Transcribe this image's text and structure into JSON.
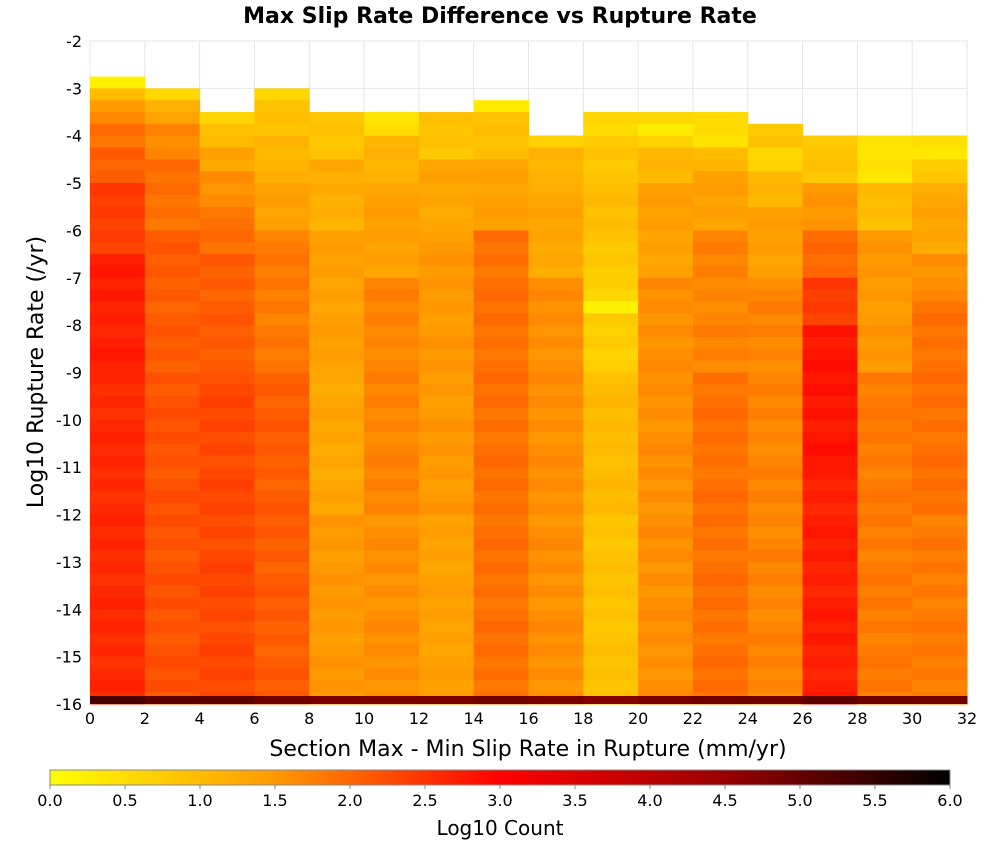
{
  "chart_data": {
    "type": "heatmap",
    "title": "Max Slip Rate Difference vs Rupture Rate",
    "xlabel": "Section Max - Min Slip Rate in Rupture (mm/yr)",
    "ylabel": "Log10 Rupture Rate (/yr)",
    "colorbar_label": "Log10 Count",
    "xlim": [
      0,
      32
    ],
    "ylim": [
      -16,
      -2
    ],
    "x_ticks": [
      "0",
      "2",
      "4",
      "6",
      "8",
      "10",
      "12",
      "14",
      "16",
      "18",
      "20",
      "22",
      "24",
      "26",
      "28",
      "30",
      "32"
    ],
    "y_ticks": [
      "-2",
      "-3",
      "-4",
      "-5",
      "-6",
      "-7",
      "-8",
      "-9",
      "-10",
      "-11",
      "-12",
      "-13",
      "-14",
      "-15",
      "-16"
    ],
    "colorbar_ticks": [
      "0.0",
      "0.5",
      "1.0",
      "1.5",
      "2.0",
      "2.5",
      "3.0",
      "3.5",
      "4.0",
      "4.5",
      "5.0",
      "5.5",
      "6.0"
    ],
    "colorbar_range": [
      0,
      6
    ],
    "colormap": [
      "#ffff00",
      "#ff9900",
      "#ff0000",
      "#990000",
      "#000000"
    ],
    "x_bin_edges": [
      0,
      2,
      4,
      6,
      8,
      10,
      12,
      14,
      16,
      18,
      20,
      22,
      24,
      26,
      28,
      30,
      32
    ],
    "y_bin_width": 0.25,
    "y_bin_min": -16.25,
    "columns": [
      {
        "x0": 0,
        "y_top": -2.75,
        "cells": [
          [
            -2.75,
            0.3
          ],
          [
            -3.0,
            1.0
          ],
          [
            -3.25,
            1.4
          ],
          [
            -3.5,
            1.7
          ],
          [
            -3.75,
            1.9
          ],
          [
            -4.25,
            2.1
          ],
          [
            -5.0,
            2.4
          ],
          [
            -6.5,
            2.7
          ],
          [
            -9.0,
            2.6
          ],
          [
            -16.0,
            2.7
          ]
        ]
      },
      {
        "x0": 2,
        "y_top": -3.0,
        "cells": [
          [
            -3.0,
            0.6
          ],
          [
            -3.25,
            1.1
          ],
          [
            -3.5,
            1.4
          ],
          [
            -3.75,
            1.7
          ],
          [
            -4.5,
            1.9
          ],
          [
            -6.0,
            2.1
          ],
          [
            -9.0,
            2.2
          ],
          [
            -16.0,
            2.2
          ]
        ]
      },
      {
        "x0": 4,
        "y_top": -3.5,
        "cells": [
          [
            -3.5,
            0.6
          ],
          [
            -3.75,
            1.0
          ],
          [
            -4.25,
            1.3
          ],
          [
            -4.75,
            1.6
          ],
          [
            -5.5,
            1.9
          ],
          [
            -6.5,
            2.1
          ],
          [
            -9.0,
            2.3
          ],
          [
            -16.0,
            2.1
          ]
        ]
      },
      {
        "x0": 6,
        "y_top": -3.0,
        "cells": [
          [
            -3.0,
            0.5
          ],
          [
            -3.25,
            0.9
          ],
          [
            -4.0,
            1.1
          ],
          [
            -5.0,
            1.4
          ],
          [
            -6.0,
            1.8
          ],
          [
            -9.0,
            2.1
          ],
          [
            -16.0,
            1.8
          ]
        ]
      },
      {
        "x0": 8,
        "y_top": -3.5,
        "cells": [
          [
            -3.5,
            0.9
          ],
          [
            -4.5,
            1.2
          ],
          [
            -6.0,
            1.4
          ],
          [
            -9.0,
            1.3
          ],
          [
            -12.0,
            1.5
          ],
          [
            -16.0,
            1.1
          ]
        ]
      },
      {
        "x0": 10,
        "y_top": -3.5,
        "cells": [
          [
            -3.5,
            0.4
          ],
          [
            -4.0,
            1.1
          ],
          [
            -5.0,
            1.4
          ],
          [
            -7.0,
            1.7
          ],
          [
            -12.0,
            1.6
          ],
          [
            -16.0,
            1.5
          ]
        ]
      },
      {
        "x0": 12,
        "y_top": -3.5,
        "cells": [
          [
            -3.5,
            0.9
          ],
          [
            -4.5,
            1.3
          ],
          [
            -6.0,
            1.5
          ],
          [
            -12.0,
            1.4
          ],
          [
            -16.0,
            1.2
          ]
        ]
      },
      {
        "x0": 14,
        "y_top": -3.25,
        "cells": [
          [
            -3.25,
            0.4
          ],
          [
            -3.5,
            0.9
          ],
          [
            -4.5,
            1.4
          ],
          [
            -6.0,
            1.9
          ],
          [
            -16.0,
            2.0
          ]
        ]
      },
      {
        "x0": 16,
        "y_top": -4.0,
        "cells": [
          [
            -4.0,
            0.7
          ],
          [
            -4.25,
            1.1
          ],
          [
            -5.0,
            1.3
          ],
          [
            -7.0,
            1.6
          ],
          [
            -16.0,
            1.5
          ]
        ]
      },
      {
        "x0": 18,
        "y_top": -3.5,
        "cells": [
          [
            -3.5,
            0.6
          ],
          [
            -4.0,
            0.8
          ],
          [
            -5.0,
            1.0
          ],
          [
            -6.0,
            0.8
          ],
          [
            -7.0,
            0.7
          ],
          [
            -7.5,
            0.2
          ],
          [
            -7.75,
            0.7
          ],
          [
            -9.0,
            1.0
          ],
          [
            -12.0,
            0.9
          ],
          [
            -16.0,
            0.8
          ]
        ]
      },
      {
        "x0": 20,
        "y_top": -3.5,
        "cells": [
          [
            -3.5,
            0.5
          ],
          [
            -3.75,
            0.3
          ],
          [
            -4.0,
            0.6
          ],
          [
            -4.25,
            1.1
          ],
          [
            -5.0,
            1.4
          ],
          [
            -7.0,
            1.6
          ],
          [
            -16.0,
            1.5
          ]
        ]
      },
      {
        "x0": 22,
        "y_top": -3.5,
        "cells": [
          [
            -3.5,
            0.6
          ],
          [
            -3.75,
            0.5
          ],
          [
            -4.25,
            1.0
          ],
          [
            -4.75,
            1.4
          ],
          [
            -6.0,
            1.7
          ],
          [
            -9.0,
            1.9
          ],
          [
            -16.0,
            1.8
          ]
        ]
      },
      {
        "x0": 24,
        "y_top": -3.75,
        "cells": [
          [
            -3.75,
            0.8
          ],
          [
            -4.25,
            0.6
          ],
          [
            -4.75,
            1.1
          ],
          [
            -5.5,
            1.4
          ],
          [
            -7.0,
            1.7
          ],
          [
            -16.0,
            1.6
          ]
        ]
      },
      {
        "x0": 26,
        "y_top": -4.0,
        "cells": [
          [
            -4.0,
            0.7
          ],
          [
            -4.25,
            0.9
          ],
          [
            -5.0,
            1.5
          ],
          [
            -6.0,
            2.0
          ],
          [
            -7.0,
            2.4
          ],
          [
            -8.0,
            2.8
          ],
          [
            -11.0,
            2.7
          ],
          [
            -16.0,
            2.4
          ]
        ]
      },
      {
        "x0": 28,
        "y_top": -4.0,
        "cells": [
          [
            -4.0,
            0.5
          ],
          [
            -4.25,
            0.4
          ],
          [
            -5.0,
            1.0
          ],
          [
            -6.0,
            1.5
          ],
          [
            -9.0,
            1.8
          ],
          [
            -16.0,
            1.6
          ]
        ]
      },
      {
        "x0": 30,
        "y_top": -4.0,
        "cells": [
          [
            -4.0,
            0.5
          ],
          [
            -4.25,
            0.3
          ],
          [
            -4.5,
            0.8
          ],
          [
            -5.0,
            1.3
          ],
          [
            -6.5,
            1.6
          ],
          [
            -7.5,
            1.9
          ],
          [
            -12.0,
            1.8
          ],
          [
            -16.0,
            1.6
          ]
        ]
      }
    ],
    "bottom_row": {
      "y": -16.0,
      "values": [
        5.3,
        5.1,
        5.1,
        4.9,
        4.8,
        4.8,
        4.8,
        4.9,
        4.8,
        4.7,
        4.8,
        4.9,
        4.9,
        5.1,
        4.9,
        4.9
      ]
    }
  }
}
